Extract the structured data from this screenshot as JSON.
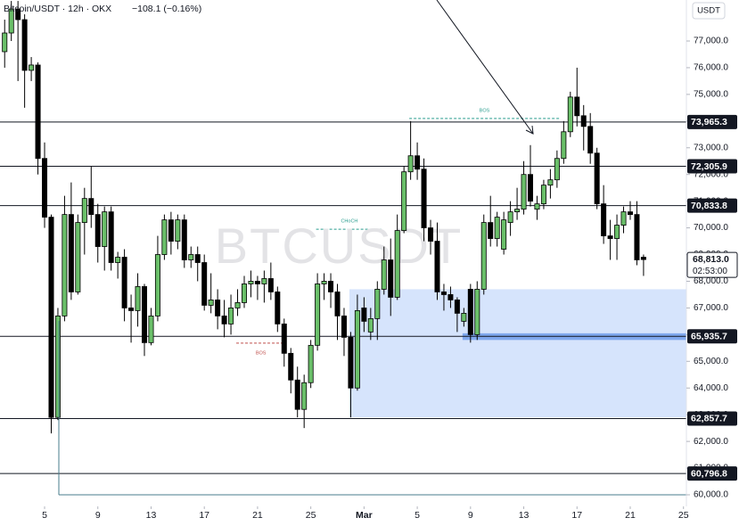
{
  "chart_data": {
    "type": "candlestick",
    "title": "Bitcoin/USDT · 12h · OKX",
    "change": "−108.1 (−0.16%)",
    "currency": "USDT",
    "watermark": "BTCUSDT",
    "up_color": "#6abf69",
    "down_color": "#000000",
    "xlim": [
      1.65,
      53.22
    ],
    "ylim": [
      59566,
      78536
    ],
    "xticks": [
      5,
      9,
      13,
      17,
      21,
      25,
      {
        "value": 29,
        "label": "Mar"
      },
      {
        "value": 33,
        "label": "5"
      },
      {
        "value": 37,
        "label": "9"
      },
      {
        "value": 41,
        "label": "13"
      },
      {
        "value": 45,
        "label": "17"
      },
      {
        "value": 49,
        "label": "21"
      },
      {
        "value": 53,
        "label": "25"
      }
    ],
    "yticks": [
      {
        "value": 60000,
        "label": "60,000.0"
      },
      {
        "value": 61000,
        "label": "61,000.0"
      },
      {
        "value": 62000,
        "label": "62,000.0"
      },
      {
        "value": 63000,
        "label": "63,000.0"
      },
      {
        "value": 64000,
        "label": "64,000.0"
      },
      {
        "value": 65000,
        "label": "65,000.0"
      },
      {
        "value": 66000,
        "label": "66,000.0"
      },
      {
        "value": 67000,
        "label": "67,000.0"
      },
      {
        "value": 68000,
        "label": "68,000.0"
      },
      {
        "value": 69000,
        "label": "69,000.0"
      },
      {
        "value": 70000,
        "label": "70,000.0"
      },
      {
        "value": 71000,
        "label": "71,000.0"
      },
      {
        "value": 72000,
        "label": "72,000.0"
      },
      {
        "value": 73000,
        "label": "73,000.0"
      },
      {
        "value": 74000,
        "label": "74,000.0"
      },
      {
        "value": 75000,
        "label": "75,000.0"
      },
      {
        "value": 76000,
        "label": "76,000.0"
      },
      {
        "value": 77000,
        "label": "77,000.0"
      }
    ],
    "x": [
      2,
      2.5,
      3,
      3.5,
      4,
      4.5,
      5,
      5.5,
      6,
      6.5,
      7,
      7.5,
      8,
      8.5,
      9,
      9.5,
      10,
      10.5,
      11,
      11.5,
      12,
      12.5,
      13,
      13.5,
      14,
      14.5,
      15,
      15.5,
      16,
      16.5,
      17,
      17.5,
      18,
      18.5,
      19,
      19.5,
      20,
      20.5,
      21,
      21.5,
      22,
      22.5,
      23,
      23.5,
      24,
      24.5,
      25,
      25.5,
      26,
      26.5,
      27,
      27.5,
      28,
      28.5,
      29,
      29.5,
      30,
      30.5,
      31,
      31.5,
      32,
      32.5,
      33,
      33.5,
      34,
      34.5,
      35,
      35.5,
      36,
      36.5,
      37,
      37.5,
      38,
      38.5,
      39,
      39.5,
      40,
      40.5,
      41,
      41.5,
      42,
      42.5,
      43,
      43.5,
      44,
      44.5,
      45,
      45.5,
      46,
      46.5,
      47,
      47.5,
      48,
      48.5,
      49,
      49.5,
      50
    ],
    "ohlc": [
      [
        76600,
        77800,
        76000,
        77300
      ],
      [
        77300,
        78500,
        77000,
        78200
      ],
      [
        78200,
        78500,
        75500,
        77800
      ],
      [
        77800,
        78000,
        74500,
        75900
      ],
      [
        75900,
        76400,
        75500,
        76100
      ],
      [
        76100,
        76200,
        72000,
        72600
      ],
      [
        72600,
        73200,
        70000,
        70400
      ],
      [
        70400,
        70500,
        62300,
        62900
      ],
      [
        62900,
        67000,
        62800,
        66700
      ],
      [
        66700,
        71200,
        66500,
        70500
      ],
      [
        70500,
        71700,
        67300,
        67600
      ],
      [
        67600,
        70500,
        67500,
        70200
      ],
      [
        70200,
        71500,
        69000,
        71100
      ],
      [
        71100,
        72300,
        70000,
        70500
      ],
      [
        70500,
        70900,
        68700,
        69300
      ],
      [
        69300,
        70800,
        68400,
        70600
      ],
      [
        70600,
        70800,
        68400,
        68700
      ],
      [
        68700,
        69100,
        68100,
        68900
      ],
      [
        68900,
        69200,
        66500,
        67000
      ],
      [
        67000,
        67500,
        65700,
        66900
      ],
      [
        66900,
        68300,
        66300,
        67800
      ],
      [
        67800,
        67900,
        65200,
        65700
      ],
      [
        65700,
        67000,
        65600,
        66700
      ],
      [
        66700,
        69700,
        66500,
        69000
      ],
      [
        69000,
        70500,
        68800,
        70300
      ],
      [
        70300,
        70600,
        69000,
        69500
      ],
      [
        69500,
        70500,
        69200,
        70300
      ],
      [
        70300,
        70500,
        68500,
        68800
      ],
      [
        68800,
        69300,
        68500,
        69000
      ],
      [
        69000,
        69300,
        68000,
        68700
      ],
      [
        68700,
        69000,
        66900,
        67100
      ],
      [
        67100,
        68300,
        66800,
        67300
      ],
      [
        67300,
        67700,
        66200,
        66700
      ],
      [
        66700,
        67300,
        65900,
        66400
      ],
      [
        66400,
        67500,
        66000,
        67000
      ],
      [
        67000,
        67700,
        66700,
        67200
      ],
      [
        67200,
        68200,
        67000,
        67900
      ],
      [
        67900,
        68400,
        67400,
        68000
      ],
      [
        68000,
        68200,
        67300,
        67900
      ],
      [
        67900,
        68400,
        67200,
        68100
      ],
      [
        68100,
        68700,
        67300,
        67600
      ],
      [
        67600,
        67800,
        66100,
        66400
      ],
      [
        66400,
        66600,
        64800,
        65300
      ],
      [
        65300,
        65500,
        63800,
        64300
      ],
      [
        64300,
        64800,
        62900,
        63200
      ],
      [
        63200,
        64500,
        62500,
        64200
      ],
      [
        64200,
        65800,
        64000,
        65600
      ],
      [
        65600,
        68300,
        65400,
        67900
      ],
      [
        67900,
        68300,
        67300,
        68000
      ],
      [
        68000,
        68300,
        67000,
        67600
      ],
      [
        67600,
        67900,
        65800,
        66700
      ],
      [
        66700,
        67000,
        65200,
        65900
      ],
      [
        65900,
        66100,
        62900,
        64000
      ],
      [
        64000,
        67500,
        63900,
        66900
      ],
      [
        67000,
        67400,
        66100,
        66500
      ],
      [
        66100,
        67000,
        65800,
        66600
      ],
      [
        66600,
        68000,
        65800,
        67700
      ],
      [
        67700,
        69300,
        67500,
        68800
      ],
      [
        68800,
        69600,
        66700,
        67400
      ],
      [
        67400,
        70500,
        67300,
        69900
      ],
      [
        69900,
        72300,
        69800,
        72100
      ],
      [
        72100,
        74000,
        71800,
        72700
      ],
      [
        72700,
        73200,
        71800,
        72200
      ],
      [
        72200,
        72600,
        69500,
        70000
      ],
      [
        70000,
        70300,
        69000,
        69500
      ],
      [
        69500,
        70200,
        67300,
        67600
      ],
      [
        67600,
        67900,
        66900,
        67500
      ],
      [
        67500,
        67800,
        67000,
        67300
      ],
      [
        67300,
        67400,
        66100,
        66800
      ],
      [
        66500,
        67000,
        66300,
        66800
      ],
      [
        67700,
        67900,
        65700,
        66000
      ],
      [
        66000,
        68000,
        65800,
        67700
      ],
      [
        67700,
        70500,
        67500,
        70200
      ],
      [
        70200,
        71200,
        69300,
        69600
      ],
      [
        69600,
        70600,
        69300,
        70400
      ],
      [
        69200,
        70600,
        69000,
        70300
      ],
      [
        70200,
        71000,
        69700,
        70600
      ],
      [
        70600,
        71500,
        70300,
        70700
      ],
      [
        70700,
        72500,
        70500,
        72000
      ],
      [
        72000,
        73100,
        70800,
        71000
      ],
      [
        70700,
        71200,
        70300,
        70900
      ],
      [
        70900,
        71800,
        70700,
        71600
      ],
      [
        71600,
        72200,
        71100,
        71800
      ],
      [
        71800,
        72900,
        71500,
        72600
      ],
      [
        72600,
        74000,
        72400,
        73600
      ],
      [
        73600,
        75100,
        73400,
        74900
      ],
      [
        74900,
        76000,
        73800,
        74200
      ],
      [
        74200,
        74600,
        72900,
        73800
      ],
      [
        73800,
        74300,
        72400,
        72800
      ],
      [
        72800,
        73000,
        70700,
        70900
      ],
      [
        70900,
        71600,
        69400,
        69700
      ],
      [
        69700,
        70300,
        68800,
        69600
      ],
      [
        69600,
        70500,
        68800,
        70100
      ],
      [
        70100,
        70800,
        69800,
        70600
      ],
      [
        70600,
        71000,
        70300,
        70500
      ],
      [
        70500,
        71000,
        68600,
        68800
      ],
      [
        68900,
        69000,
        68200,
        68813
      ]
    ],
    "levels": [
      {
        "value": 73965.3,
        "label": "73,965.3"
      },
      {
        "value": 72305.9,
        "label": "72,305.9"
      },
      {
        "value": 70833.8,
        "label": "70,833.8"
      },
      {
        "value": 65935.7,
        "label": "65,935.7"
      },
      {
        "value": 62857.7,
        "label": "62,857.7"
      },
      {
        "value": 60796.8,
        "label": "60,796.8"
      }
    ],
    "last_price": {
      "value": 68813.0,
      "label": "68,813.0",
      "countdown": "02:53:00"
    },
    "zones": [
      {
        "x0": 27.9,
        "y0": 62900,
        "y1": 67700
      },
      {
        "x0": 36.4,
        "y0": 65800,
        "y1": 66050
      }
    ],
    "annotations": [
      {
        "text": "BOS",
        "x0": 32.4,
        "x1": 43.7,
        "y": 74100
      },
      {
        "text": "CHoCH",
        "x0": 25.4,
        "x1": 30.4,
        "y": 69950
      },
      {
        "text": "BOS",
        "x0": 19.4,
        "x1": 23.1,
        "y": 65680
      }
    ]
  }
}
